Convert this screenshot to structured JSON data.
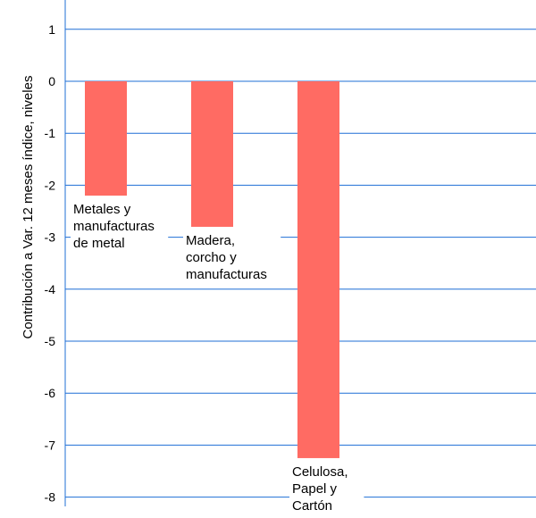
{
  "chart_data": {
    "type": "bar",
    "title": "",
    "xlabel": "",
    "ylabel": "Contribución a Var. 12 meses índice, niveles",
    "ylim": [
      -8,
      1.5
    ],
    "yticks": [
      1,
      0,
      -1,
      -2,
      -3,
      -4,
      -5,
      -6,
      -7,
      -8
    ],
    "grid": true,
    "bar_color": "#ff6b63",
    "grid_color": "#1f6fd6",
    "categories": [
      "Metales y manufacturas de metal",
      "Madera, corcho y manufacturas",
      "Celulosa, Papel y Cartón"
    ],
    "category_lines": [
      [
        "Metales y",
        "manufacturas",
        "de metal"
      ],
      [
        "Madera,",
        "corcho y",
        "manufacturas"
      ],
      [
        "Celulosa,",
        "Papel y",
        "Cartón"
      ]
    ],
    "values": [
      -2.2,
      -2.8,
      -7.25
    ]
  }
}
